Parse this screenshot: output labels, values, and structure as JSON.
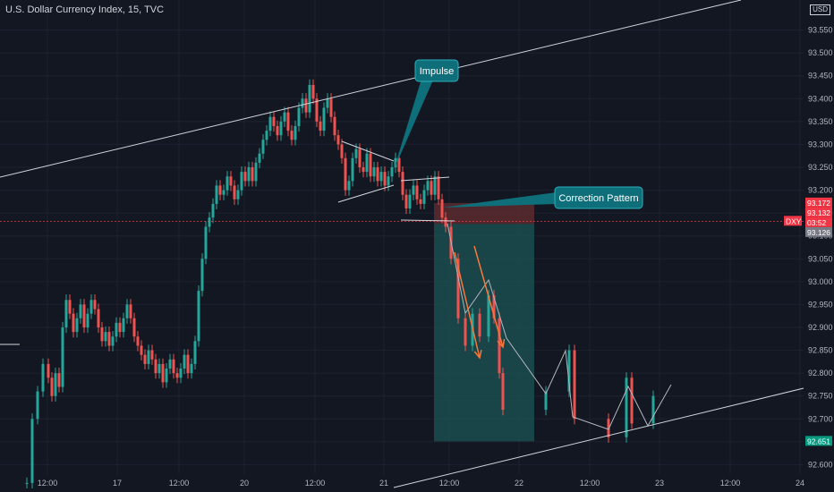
{
  "header": {
    "title": "U.S. Dollar Currency Index, 15, TVC",
    "currency": "USD"
  },
  "chart_data": {
    "type": "candlestick",
    "y_ticks": [
      "93.550",
      "93.500",
      "93.450",
      "93.400",
      "93.350",
      "93.300",
      "93.250",
      "93.200",
      "93.150",
      "93.100",
      "93.050",
      "93.000",
      "92.950",
      "92.900",
      "92.850",
      "92.800",
      "92.750",
      "92.700",
      "92.650",
      "92.600"
    ],
    "x_ticks": [
      "12:00",
      "17",
      "12:00",
      "20",
      "12:00",
      "21",
      "12:00",
      "22",
      "12:00",
      "23",
      "12:00",
      "24"
    ],
    "price_tags": [
      {
        "label": "93.172",
        "value": 93.172,
        "color": "#f23645"
      },
      {
        "label": "93.132",
        "value": 93.132,
        "color": "#f23645"
      },
      {
        "label": "03:52",
        "value": 93.132,
        "color": "#f23645"
      },
      {
        "label": "93.126",
        "value": 93.126,
        "color": "#787b86"
      },
      {
        "label": "92.651",
        "value": 92.651,
        "color": "#089981"
      }
    ],
    "symbol_tag": "DXY",
    "annotations": [
      {
        "label": "Impulse"
      },
      {
        "label": "Correction Pattern"
      }
    ],
    "colors": {
      "up": "#26a69a",
      "down": "#ef5350",
      "background": "#131722"
    }
  }
}
